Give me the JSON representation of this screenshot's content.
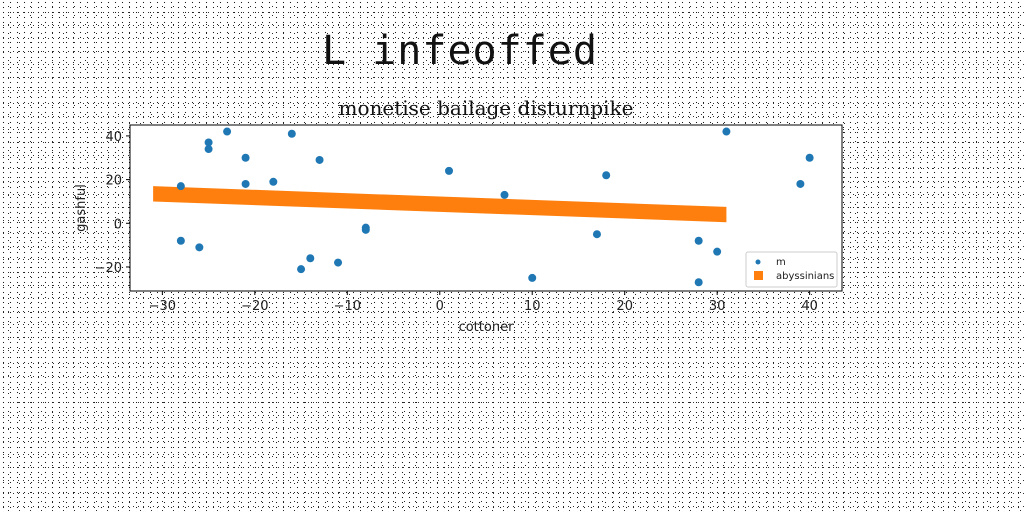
{
  "header": {
    "title": "L infeoffed"
  },
  "chart_data": {
    "type": "scatter",
    "title": "monetise bailage disturnpike",
    "xlabel": "cottoner",
    "ylabel": "gashful",
    "xlim": [
      -33.5,
      43.5
    ],
    "ylim": [
      -31,
      45
    ],
    "xticks": [
      -30,
      -20,
      -10,
      0,
      10,
      20,
      30,
      40
    ],
    "yticks": [
      -20,
      0,
      20,
      40
    ],
    "xtick_labels": [
      "−30",
      "−20",
      "−10",
      "0",
      "10",
      "20",
      "30",
      "40"
    ],
    "ytick_labels": [
      "−20",
      "0",
      "20",
      "40"
    ],
    "grid": false,
    "legend_position": "lower-right",
    "series": [
      {
        "name": "m",
        "type": "scatter",
        "color": "#1f77b4",
        "x": [
          -28,
          -28,
          -26,
          -25,
          -25,
          -23,
          -21,
          -21,
          -18,
          -16,
          -15,
          -14,
          -13,
          -11,
          -8,
          -8,
          1,
          7,
          10,
          17,
          18,
          28,
          28,
          30,
          31,
          39,
          40
        ],
        "y": [
          17,
          -8,
          -11,
          37,
          34,
          42,
          30,
          18,
          19,
          41,
          -21,
          -16,
          29,
          -18,
          -2,
          -3,
          24,
          13,
          -25,
          -5,
          22,
          -8,
          -27,
          -13,
          42,
          18,
          30
        ]
      },
      {
        "name": "abyssinians",
        "type": "band",
        "color": "#ff7f0e",
        "x": [
          -31,
          31
        ],
        "y": [
          13.5,
          4
        ],
        "band_half_width": 3.5
      }
    ]
  }
}
